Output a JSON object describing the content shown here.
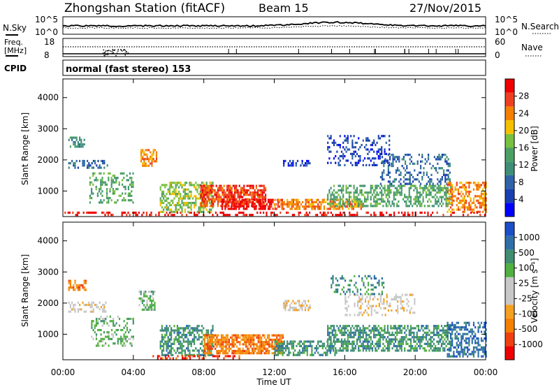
{
  "header": {
    "station": "Zhongshan Station (fitACF)",
    "beam": "Beam 15",
    "date": "27/Nov/2015"
  },
  "top_panels": {
    "nsky_label": "N.Sky",
    "nsky_ticks": [
      "10^5",
      "10^0"
    ],
    "nsearch_label": "N.Search",
    "nsearch_ticks": [
      "10^5",
      "10^0"
    ],
    "freq_label_1": "Freq.",
    "freq_label_2": "[MHz]",
    "freq_ticks": [
      "18",
      "8"
    ],
    "nave_label": "Nave",
    "nave_ticks": [
      "60",
      "0"
    ],
    "cpid_label": "CPID",
    "cpid_text": "normal (fast stereo) 153"
  },
  "chart_data": [
    {
      "type": "heatmap",
      "title": "",
      "xlabel": "",
      "ylabel": "Slant Range [km]",
      "colorbar_label": "Power [dB]",
      "xlim_hours": [
        0,
        24
      ],
      "ylim_km": [
        180,
        4600
      ],
      "yticks": [
        1000,
        2000,
        3000,
        4000
      ],
      "colorbar": {
        "ticks": [
          "28",
          "24",
          "20",
          "16",
          "12",
          "8",
          "4"
        ],
        "colors": [
          "#0000ff",
          "#1a3fb0",
          "#2f64a8",
          "#3f8f78",
          "#4ca064",
          "#78c040",
          "#f5c000",
          "#f58000",
          "#ee4020",
          "#ee0000"
        ]
      },
      "regions": [
        {
          "x0": 0.3,
          "x1": 1.2,
          "y0": 2450,
          "y1": 2750,
          "level": 3,
          "density": 0.6
        },
        {
          "x0": 0.3,
          "x1": 2.5,
          "y0": 1750,
          "y1": 2000,
          "level": 2,
          "density": 0.45
        },
        {
          "x0": 1.5,
          "x1": 4.0,
          "y0": 600,
          "y1": 1600,
          "level": 4,
          "density": 0.35
        },
        {
          "x0": 4.4,
          "x1": 5.3,
          "y0": 1800,
          "y1": 2350,
          "level": 7,
          "density": 0.6
        },
        {
          "x0": 5.5,
          "x1": 8.5,
          "y0": 350,
          "y1": 1300,
          "level": 5,
          "density": 0.55
        },
        {
          "x0": 7.8,
          "x1": 11.5,
          "y0": 550,
          "y1": 1200,
          "level": 8,
          "density": 0.75
        },
        {
          "x0": 9.0,
          "x1": 12.5,
          "y0": 450,
          "y1": 750,
          "level": 9,
          "density": 0.6
        },
        {
          "x0": 12.0,
          "x1": 17.0,
          "y0": 400,
          "y1": 750,
          "level": 7,
          "density": 0.6
        },
        {
          "x0": 15.0,
          "x1": 22.0,
          "y0": 500,
          "y1": 1200,
          "level": 4,
          "density": 0.5
        },
        {
          "x0": 15.0,
          "x1": 18.5,
          "y0": 1800,
          "y1": 2800,
          "level": 1,
          "density": 0.3
        },
        {
          "x0": 18.0,
          "x1": 22.0,
          "y0": 1200,
          "y1": 2200,
          "level": 2,
          "density": 0.3
        },
        {
          "x0": 21.8,
          "x1": 24.0,
          "y0": 300,
          "y1": 1300,
          "level": 7,
          "density": 0.5
        },
        {
          "x0": 12.5,
          "x1": 14.0,
          "y0": 1800,
          "y1": 2000,
          "level": 1,
          "density": 0.5
        },
        {
          "x0": 0.0,
          "x1": 24.0,
          "y0": 200,
          "y1": 340,
          "level": 9,
          "density": 0.35
        }
      ]
    },
    {
      "type": "heatmap",
      "title": "",
      "xlabel": "Time UT",
      "ylabel": "Slant Range [km]",
      "colorbar_label": "Velocity [m s⁻¹]",
      "xlim_hours": [
        0,
        24
      ],
      "ylim_km": [
        180,
        4600
      ],
      "yticks": [
        1000,
        2000,
        3000,
        4000
      ],
      "xticks": [
        "00:00",
        "04:00",
        "08:00",
        "12:00",
        "16:00",
        "20:00",
        "00:00"
      ],
      "colorbar": {
        "ticks": [
          "1000",
          "500",
          "100",
          "25",
          "-25",
          "-100",
          "-500",
          "-1000"
        ],
        "colors": [
          "#ee0000",
          "#f04010",
          "#f58000",
          "#f5a020",
          "#c8c8c8",
          "#c8c8c8",
          "#50b040",
          "#3f8f70",
          "#2f6fa8",
          "#1a4fc8"
        ]
      },
      "regions": [
        {
          "x0": 0.3,
          "x1": 1.3,
          "y0": 2450,
          "y1": 2750,
          "level": 2,
          "density": 0.6
        },
        {
          "x0": 0.3,
          "x1": 2.4,
          "y0": 1750,
          "y1": 2050,
          "level": 4,
          "density": 0.45
        },
        {
          "x0": 1.6,
          "x1": 4.0,
          "y0": 600,
          "y1": 1600,
          "level": 6,
          "density": 0.35
        },
        {
          "x0": 4.3,
          "x1": 5.2,
          "y0": 1800,
          "y1": 2400,
          "level": 6,
          "density": 0.55
        },
        {
          "x0": 5.5,
          "x1": 8.5,
          "y0": 350,
          "y1": 1300,
          "level": 7,
          "density": 0.55
        },
        {
          "x0": 8.0,
          "x1": 12.5,
          "y0": 400,
          "y1": 1000,
          "level": 2,
          "density": 0.75
        },
        {
          "x0": 12.0,
          "x1": 15.5,
          "y0": 350,
          "y1": 800,
          "level": 7,
          "density": 0.55
        },
        {
          "x0": 15.0,
          "x1": 22.0,
          "y0": 450,
          "y1": 1300,
          "level": 7,
          "density": 0.6
        },
        {
          "x0": 16.0,
          "x1": 20.0,
          "y0": 1600,
          "y1": 2300,
          "level": 4,
          "density": 0.3
        },
        {
          "x0": 15.2,
          "x1": 18.2,
          "y0": 2300,
          "y1": 2900,
          "level": 7,
          "density": 0.3
        },
        {
          "x0": 21.8,
          "x1": 24.0,
          "y0": 300,
          "y1": 1400,
          "level": 8,
          "density": 0.5
        },
        {
          "x0": 12.5,
          "x1": 14.0,
          "y0": 1800,
          "y1": 2100,
          "level": 4,
          "density": 0.5
        },
        {
          "x0": 5.0,
          "x1": 10.0,
          "y0": 200,
          "y1": 330,
          "level": 1,
          "density": 0.4
        }
      ]
    }
  ]
}
